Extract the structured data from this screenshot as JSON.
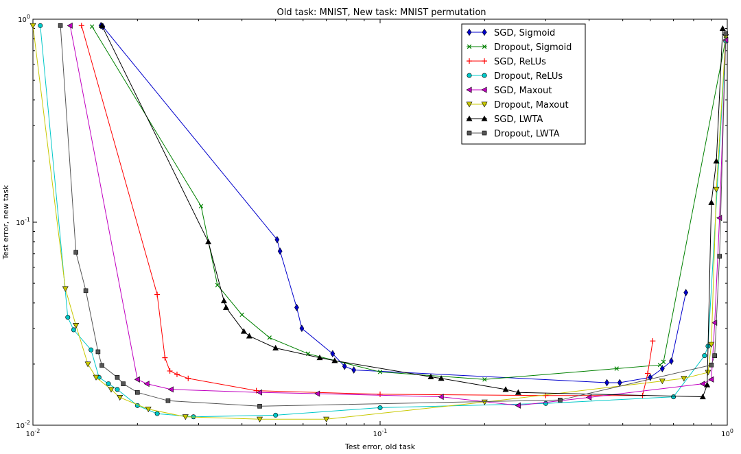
{
  "chart_data": {
    "type": "line",
    "title": "Old task: MNIST, New task: MNIST permutation",
    "xlabel": "Test error, old task",
    "ylabel": "Test error, new task",
    "xscale": "log",
    "yscale": "log",
    "xlim": [
      0.01,
      1
    ],
    "ylim": [
      0.01,
      1
    ],
    "x_ticks": [
      {
        "value": 0.01,
        "base": "10",
        "exp": "-2"
      },
      {
        "value": 0.1,
        "base": "10",
        "exp": "-1"
      },
      {
        "value": 1,
        "base": "10",
        "exp": "0"
      }
    ],
    "y_ticks": [
      {
        "value": 0.01,
        "base": "10",
        "exp": "-2"
      },
      {
        "value": 0.1,
        "base": "10",
        "exp": "-1"
      },
      {
        "value": 1,
        "base": "10",
        "exp": "0"
      }
    ],
    "grid": false,
    "legend_position": "top-right",
    "series": [
      {
        "name": "SGD, Sigmoid",
        "color": "#0000cc",
        "marker": "diamond",
        "points": [
          [
            0.0157,
            0.93
          ],
          [
            0.0159,
            0.92
          ],
          [
            0.0505,
            0.082
          ],
          [
            0.0515,
            0.072
          ],
          [
            0.0575,
            0.038
          ],
          [
            0.0595,
            0.03
          ],
          [
            0.073,
            0.0225
          ],
          [
            0.079,
            0.0195
          ],
          [
            0.084,
            0.0187
          ],
          [
            0.45,
            0.0162
          ],
          [
            0.49,
            0.0162
          ],
          [
            0.6,
            0.0172
          ],
          [
            0.65,
            0.019
          ],
          [
            0.69,
            0.0207
          ],
          [
            0.76,
            0.045
          ]
        ]
      },
      {
        "name": "Dropout, Sigmoid",
        "color": "#008000",
        "marker": "x",
        "points": [
          [
            0.0148,
            0.92
          ],
          [
            0.0305,
            0.12
          ],
          [
            0.034,
            0.049
          ],
          [
            0.04,
            0.035
          ],
          [
            0.048,
            0.027
          ],
          [
            0.062,
            0.0225
          ],
          [
            0.1,
            0.0183
          ],
          [
            0.2,
            0.0168
          ],
          [
            0.48,
            0.019
          ],
          [
            0.64,
            0.0198
          ],
          [
            0.655,
            0.0205
          ],
          [
            0.99,
            0.8
          ]
        ]
      },
      {
        "name": "SGD, ReLUs",
        "color": "#ff0000",
        "marker": "plus",
        "points": [
          [
            0.0138,
            0.93
          ],
          [
            0.0228,
            0.044
          ],
          [
            0.024,
            0.0215
          ],
          [
            0.0248,
            0.0185
          ],
          [
            0.026,
            0.0178
          ],
          [
            0.028,
            0.017
          ],
          [
            0.044,
            0.0148
          ],
          [
            0.1,
            0.0142
          ],
          [
            0.3,
            0.014
          ],
          [
            0.57,
            0.014
          ],
          [
            0.59,
            0.018
          ],
          [
            0.61,
            0.026
          ]
        ]
      },
      {
        "name": "Dropout, ReLUs",
        "color": "#00c8c8",
        "marker": "circle",
        "points": [
          [
            0.0105,
            0.93
          ],
          [
            0.0126,
            0.034
          ],
          [
            0.0131,
            0.0295
          ],
          [
            0.0147,
            0.0235
          ],
          [
            0.0155,
            0.0172
          ],
          [
            0.0165,
            0.016
          ],
          [
            0.0175,
            0.015
          ],
          [
            0.02,
            0.0125
          ],
          [
            0.0228,
            0.0114
          ],
          [
            0.029,
            0.011
          ],
          [
            0.05,
            0.0112
          ],
          [
            0.1,
            0.0122
          ],
          [
            0.3,
            0.0128
          ],
          [
            0.7,
            0.0138
          ],
          [
            0.86,
            0.022
          ],
          [
            0.88,
            0.0245
          ],
          [
            0.99,
            0.78
          ]
        ]
      },
      {
        "name": "SGD, Maxout",
        "color": "#c000c0",
        "marker": "triangle-left",
        "points": [
          [
            0.0128,
            0.93
          ],
          [
            0.02,
            0.0168
          ],
          [
            0.0213,
            0.016
          ],
          [
            0.025,
            0.015
          ],
          [
            0.045,
            0.0145
          ],
          [
            0.066,
            0.0143
          ],
          [
            0.15,
            0.0138
          ],
          [
            0.25,
            0.0125
          ],
          [
            0.4,
            0.0137
          ],
          [
            0.85,
            0.016
          ],
          [
            0.9,
            0.0168
          ],
          [
            0.92,
            0.032
          ],
          [
            0.95,
            0.105
          ],
          [
            0.99,
            0.79
          ]
        ]
      },
      {
        "name": "Dropout, Maxout",
        "color": "#c8c800",
        "marker": "triangle-down",
        "points": [
          [
            0.01,
            0.93
          ],
          [
            0.0124,
            0.047
          ],
          [
            0.0133,
            0.031
          ],
          [
            0.0144,
            0.02
          ],
          [
            0.0152,
            0.0172
          ],
          [
            0.0168,
            0.015
          ],
          [
            0.0178,
            0.0137
          ],
          [
            0.0215,
            0.012
          ],
          [
            0.0275,
            0.011
          ],
          [
            0.045,
            0.0107
          ],
          [
            0.07,
            0.0107
          ],
          [
            0.2,
            0.013
          ],
          [
            0.65,
            0.0165
          ],
          [
            0.75,
            0.017
          ],
          [
            0.88,
            0.0182
          ],
          [
            0.9,
            0.025
          ],
          [
            0.93,
            0.145
          ],
          [
            0.99,
            0.82
          ]
        ]
      },
      {
        "name": "SGD, LWTA",
        "color": "#000000",
        "marker": "triangle-up",
        "points": [
          [
            0.0158,
            0.93
          ],
          [
            0.032,
            0.08
          ],
          [
            0.0355,
            0.041
          ],
          [
            0.036,
            0.038
          ],
          [
            0.0405,
            0.029
          ],
          [
            0.042,
            0.0275
          ],
          [
            0.05,
            0.024
          ],
          [
            0.067,
            0.0215
          ],
          [
            0.074,
            0.0208
          ],
          [
            0.14,
            0.0173
          ],
          [
            0.15,
            0.017
          ],
          [
            0.23,
            0.015
          ],
          [
            0.25,
            0.0145
          ],
          [
            0.85,
            0.0138
          ],
          [
            0.875,
            0.0158
          ],
          [
            0.9,
            0.125
          ],
          [
            0.93,
            0.2
          ],
          [
            0.97,
            0.9
          ]
        ]
      },
      {
        "name": "Dropout, LWTA",
        "color": "#555555",
        "marker": "square",
        "points": [
          [
            0.012,
            0.93
          ],
          [
            0.0133,
            0.071
          ],
          [
            0.0142,
            0.046
          ],
          [
            0.0154,
            0.023
          ],
          [
            0.0158,
            0.0197
          ],
          [
            0.0175,
            0.0172
          ],
          [
            0.0182,
            0.016
          ],
          [
            0.02,
            0.0145
          ],
          [
            0.0245,
            0.0132
          ],
          [
            0.045,
            0.0124
          ],
          [
            0.33,
            0.0133
          ],
          [
            0.9,
            0.0198
          ],
          [
            0.92,
            0.022
          ],
          [
            0.95,
            0.068
          ],
          [
            0.99,
            0.85
          ]
        ]
      }
    ]
  }
}
